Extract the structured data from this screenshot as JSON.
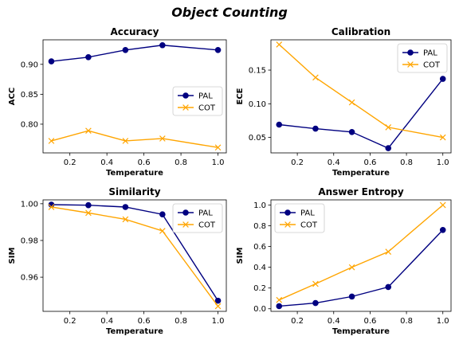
{
  "figure": {
    "title": "Object Counting"
  },
  "colors": {
    "PAL": "#000080",
    "COT": "#FFA500"
  },
  "chart_data": [
    {
      "type": "line",
      "title": "Accuracy",
      "xlabel": "Temperature",
      "ylabel": "ACC",
      "x": [
        0.1,
        0.3,
        0.5,
        0.7,
        1.0
      ],
      "series": [
        {
          "name": "PAL",
          "marker": "circle",
          "values": [
            0.905,
            0.912,
            0.924,
            0.932,
            0.924
          ]
        },
        {
          "name": "COT",
          "marker": "x",
          "values": [
            0.772,
            0.789,
            0.772,
            0.776,
            0.761
          ]
        }
      ],
      "xlim": [
        0.055,
        1.045
      ],
      "ylim": [
        0.752,
        0.941
      ],
      "xticks": [
        "0.2",
        "0.4",
        "0.6",
        "0.8",
        "1.0"
      ],
      "yticks": [
        "0.80",
        "0.85",
        "0.90"
      ],
      "grid": false,
      "legend": "center-right"
    },
    {
      "type": "line",
      "title": "Calibration",
      "xlabel": "Temperature",
      "ylabel": "ECE",
      "x": [
        0.1,
        0.3,
        0.5,
        0.7,
        1.0
      ],
      "series": [
        {
          "name": "PAL",
          "marker": "circle",
          "values": [
            0.069,
            0.063,
            0.058,
            0.034,
            0.137
          ]
        },
        {
          "name": "COT",
          "marker": "x",
          "values": [
            0.188,
            0.139,
            0.102,
            0.065,
            0.05
          ]
        }
      ],
      "xlim": [
        0.055,
        1.045
      ],
      "ylim": [
        0.027,
        0.195
      ],
      "xticks": [
        "0.2",
        "0.4",
        "0.6",
        "0.8",
        "1.0"
      ],
      "yticks": [
        "0.05",
        "0.10",
        "0.15"
      ],
      "grid": false,
      "legend": "top-right"
    },
    {
      "type": "line",
      "title": "Similarity",
      "xlabel": "Temperature",
      "ylabel": "SIM",
      "x": [
        0.1,
        0.3,
        0.5,
        0.7,
        1.0
      ],
      "series": [
        {
          "name": "PAL",
          "marker": "circle",
          "values": [
            0.9995,
            0.9992,
            0.9982,
            0.9942,
            0.9472
          ]
        },
        {
          "name": "COT",
          "marker": "x",
          "values": [
            0.9982,
            0.995,
            0.9915,
            0.9852,
            0.9442
          ]
        }
      ],
      "xlim": [
        0.055,
        1.045
      ],
      "ylim": [
        0.9414,
        1.0021
      ],
      "xticks": [
        "0.2",
        "0.4",
        "0.6",
        "0.8",
        "1.0"
      ],
      "yticks": [
        "0.96",
        "0.98",
        "1.00"
      ],
      "grid": false,
      "legend": "top-right"
    },
    {
      "type": "line",
      "title": "Answer Entropy",
      "xlabel": "Temperature",
      "ylabel": "SIM",
      "x": [
        0.1,
        0.3,
        0.5,
        0.7,
        1.0
      ],
      "series": [
        {
          "name": "PAL",
          "marker": "circle",
          "values": [
            0.025,
            0.055,
            0.118,
            0.21,
            0.76
          ]
        },
        {
          "name": "COT",
          "marker": "x",
          "values": [
            0.085,
            0.24,
            0.4,
            0.55,
            1.0
          ]
        }
      ],
      "xlim": [
        0.055,
        1.045
      ],
      "ylim": [
        -0.025,
        1.05
      ],
      "xticks": [
        "0.2",
        "0.4",
        "0.6",
        "0.8",
        "1.0"
      ],
      "yticks": [
        "0.0",
        "0.2",
        "0.4",
        "0.6",
        "0.8",
        "1.0"
      ],
      "grid": false,
      "legend": "top-left"
    }
  ]
}
